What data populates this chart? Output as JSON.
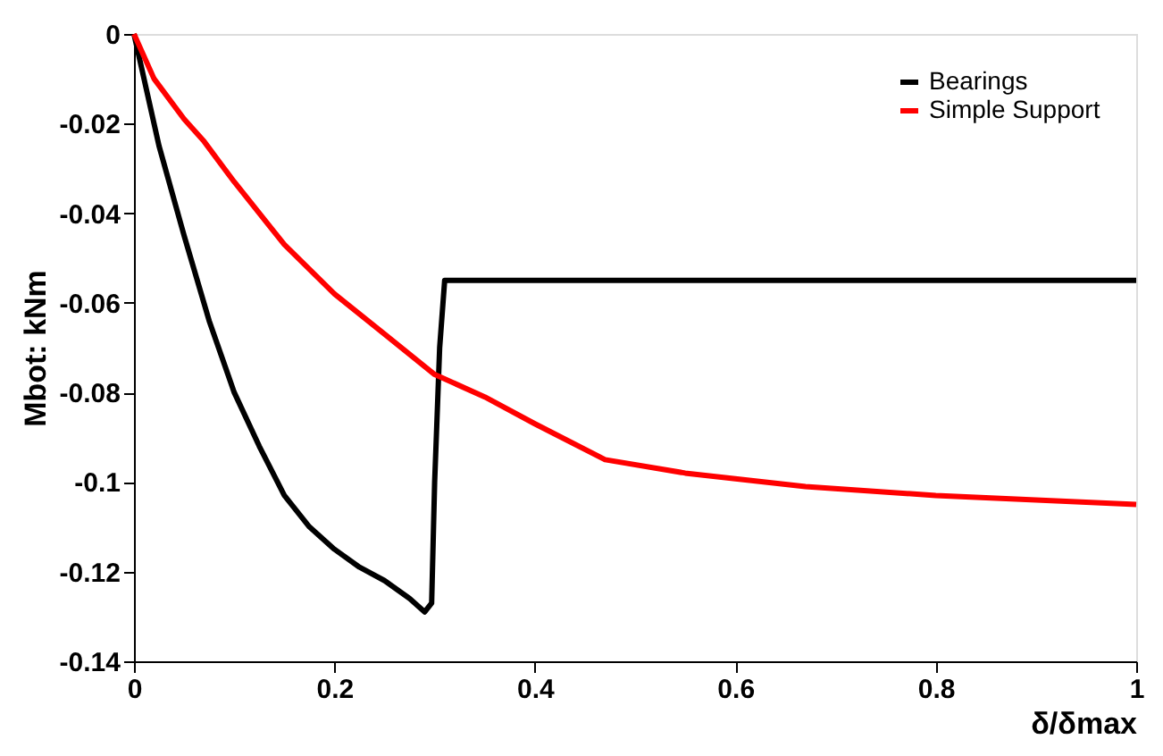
{
  "chart_data": {
    "type": "line",
    "xlabel": "δ/δmax",
    "ylabel": "Mbot: kNm",
    "xlim": [
      0,
      1
    ],
    "xticks": [
      0,
      0.2,
      0.4,
      0.6,
      0.8,
      1
    ],
    "ylim": [
      -0.14,
      0
    ],
    "yticks": [
      -0.14,
      -0.12,
      -0.1,
      -0.08,
      -0.06,
      -0.04,
      -0.02,
      0
    ],
    "grid": false,
    "legend": "top right",
    "marker": "none",
    "line_style": "solid",
    "series": [
      {
        "name": "Bearings",
        "color": "#000000",
        "x": [
          0,
          0.01,
          0.025,
          0.05,
          0.075,
          0.1,
          0.125,
          0.15,
          0.175,
          0.2,
          0.225,
          0.25,
          0.275,
          0.29,
          0.297,
          0.3,
          0.305,
          0.31,
          0.4,
          0.6,
          0.8,
          1
        ],
        "values": [
          0,
          -0.01,
          -0.025,
          -0.045,
          -0.064,
          -0.08,
          -0.092,
          -0.103,
          -0.11,
          -0.115,
          -0.119,
          -0.122,
          -0.126,
          -0.129,
          -0.127,
          -0.1,
          -0.07,
          -0.055,
          -0.055,
          -0.055,
          -0.055,
          -0.055
        ]
      },
      {
        "name": "Simple Support",
        "color": "#ff0000",
        "x": [
          0,
          0.02,
          0.05,
          0.07,
          0.1,
          0.15,
          0.2,
          0.25,
          0.3,
          0.35,
          0.4,
          0.47,
          0.55,
          0.67,
          0.8,
          1
        ],
        "values": [
          0,
          -0.01,
          -0.019,
          -0.024,
          -0.033,
          -0.047,
          -0.058,
          -0.067,
          -0.076,
          -0.081,
          -0.087,
          -0.095,
          -0.098,
          -0.101,
          -0.103,
          -0.105
        ]
      }
    ]
  }
}
